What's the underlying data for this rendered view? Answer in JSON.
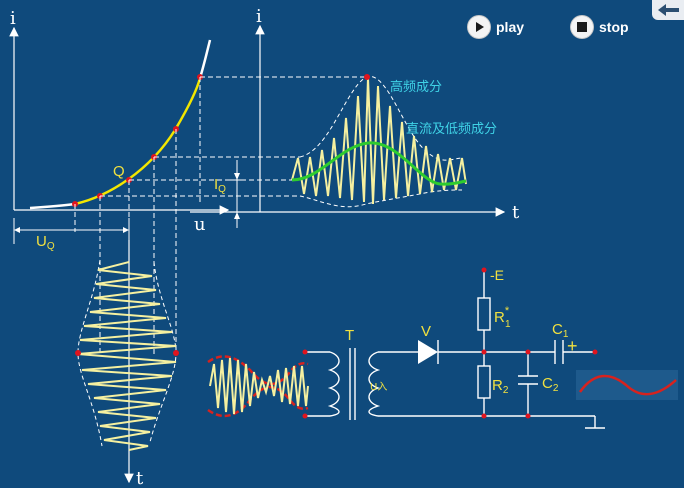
{
  "controls": {
    "play_label": "play",
    "stop_label": "stop"
  },
  "labels": {
    "axis_i_left": "i",
    "axis_i_right": "i",
    "axis_u": "u",
    "axis_t_right": "t",
    "axis_t_bottom": "t",
    "point_q": "Q",
    "iq_main": "I",
    "iq_sub": "Q",
    "uq_main": "U",
    "uq_sub": "Q",
    "high_freq": "高频成分",
    "dc_low_freq": "直流及低频成分",
    "transformer": "T",
    "u_in": "U入",
    "diode": "V",
    "minus_e": "-E",
    "r1_main": "R",
    "r1_sup": "*",
    "r1_sub": "1",
    "r2_main": "R",
    "r2_sub": "2",
    "c1_main": "C",
    "c1_sub": "1",
    "c2_main": "C",
    "c2_sub": "2",
    "plus": "+"
  },
  "colors": {
    "background": "#0f4a7c",
    "curve": "#f2e600",
    "signal": "#f5f0a0",
    "low_freq": "#2ecc2e",
    "marker": "#e0141e",
    "label_cyan": "#3fd2e6",
    "label_yellow": "#f0e040",
    "output_wave": "#d8221e",
    "axis": "#ffffff"
  }
}
